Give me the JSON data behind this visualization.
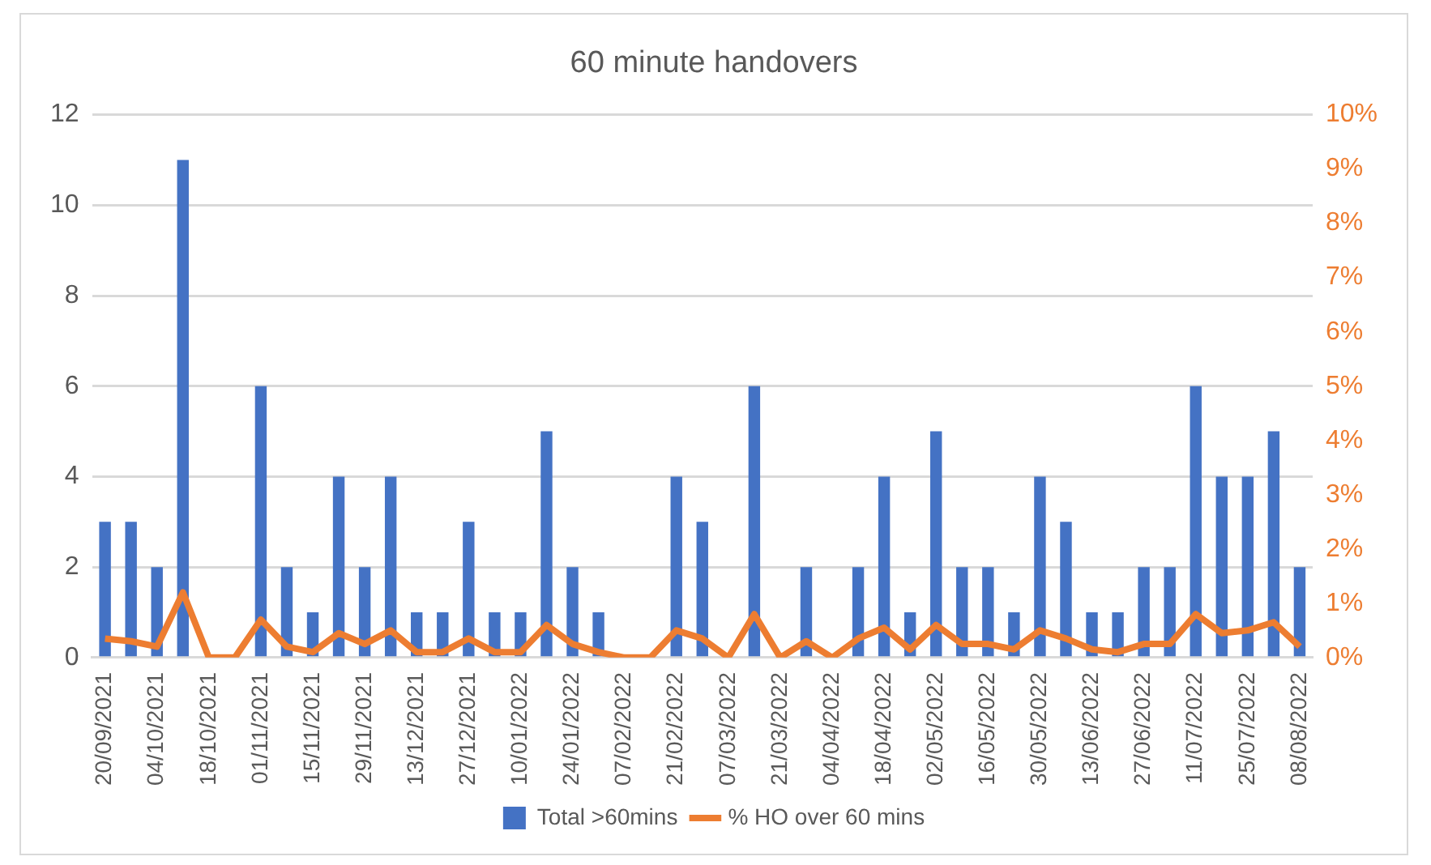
{
  "chart_data": {
    "type": "bar",
    "title": "60 minute handovers",
    "categories": [
      "20/09/2021",
      null,
      "04/10/2021",
      null,
      "18/10/2021",
      null,
      "01/11/2021",
      null,
      "15/11/2021",
      null,
      "29/11/2021",
      null,
      "13/12/2021",
      null,
      "27/12/2021",
      null,
      "10/01/2022",
      null,
      "24/01/2022",
      null,
      "07/02/2022",
      null,
      "21/02/2022",
      null,
      "07/03/2022",
      null,
      "21/03/2022",
      null,
      "04/04/2022",
      null,
      "18/04/2022",
      null,
      "02/05/2022",
      null,
      "16/05/2022",
      null,
      "30/05/2022",
      null,
      "13/06/2022",
      null,
      "27/06/2022",
      null,
      "11/07/2022",
      null,
      "25/07/2022",
      null,
      "08/08/2022"
    ],
    "series": [
      {
        "name": "Total >60mins",
        "color": "#4472c4",
        "values": [
          3,
          3,
          2,
          11,
          0,
          0,
          6,
          2,
          1,
          4,
          2,
          4,
          1,
          1,
          3,
          1,
          1,
          5,
          2,
          1,
          0,
          0,
          4,
          3,
          0,
          6,
          0,
          2,
          0,
          2,
          4,
          1,
          5,
          2,
          2,
          1,
          4,
          3,
          1,
          1,
          2,
          2,
          6,
          4,
          4,
          5,
          2
        ]
      },
      {
        "name": "% HO over 60 mins",
        "type": "line",
        "axis": "y2",
        "color": "#ed7d31",
        "values": [
          0.35,
          0.3,
          0.2,
          1.2,
          0,
          0,
          0.7,
          0.2,
          0.1,
          0.45,
          0.25,
          0.5,
          0.1,
          0.1,
          0.35,
          0.1,
          0.1,
          0.6,
          0.25,
          0.1,
          0,
          0,
          0.5,
          0.35,
          0,
          0.8,
          0,
          0.3,
          0,
          0.35,
          0.55,
          0.15,
          0.6,
          0.25,
          0.25,
          0.15,
          0.5,
          0.35,
          0.15,
          0.1,
          0.25,
          0.25,
          0.8,
          0.45,
          0.5,
          0.65,
          0.2
        ]
      }
    ],
    "ylim": [
      0,
      12
    ],
    "yticks": [
      0,
      2,
      4,
      6,
      8,
      10,
      12
    ],
    "y2lim": [
      0,
      10
    ],
    "y2ticks": [
      {
        "value": 0,
        "label": "0%"
      },
      {
        "value": 1,
        "label": "1%"
      },
      {
        "value": 2,
        "label": "2%"
      },
      {
        "value": 3,
        "label": "3%"
      },
      {
        "value": 4,
        "label": "4%"
      },
      {
        "value": 5,
        "label": "5%"
      },
      {
        "value": 6,
        "label": "6%"
      },
      {
        "value": 7,
        "label": "7%"
      },
      {
        "value": 8,
        "label": "8%"
      },
      {
        "value": 9,
        "label": "9%"
      },
      {
        "value": 10,
        "label": "10%"
      }
    ],
    "grid": "y",
    "legend": "bottom",
    "marker": "none",
    "line_style": "solid"
  }
}
